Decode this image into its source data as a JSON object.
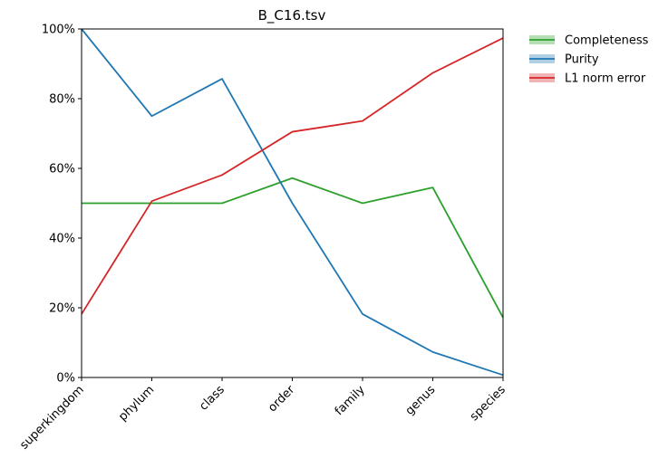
{
  "chart_data": {
    "type": "line",
    "title": "B_C16.tsv",
    "xlabel": "",
    "ylabel": "",
    "categories": [
      "superkingdom",
      "phylum",
      "class",
      "order",
      "family",
      "genus",
      "species"
    ],
    "ylim": [
      0,
      100
    ],
    "yticks": [
      "0%",
      "20%",
      "40%",
      "60%",
      "80%",
      "100%"
    ],
    "grid": false,
    "legend_position": "outside-top-right",
    "series": [
      {
        "name": "Completeness",
        "color": "#2ca02c",
        "values": [
          50,
          50,
          50,
          57.2,
          50,
          54.5,
          17.2
        ]
      },
      {
        "name": "Purity",
        "color": "#1f77b4",
        "values": [
          100,
          75,
          85.7,
          50,
          18.2,
          7.3,
          0.7
        ]
      },
      {
        "name": "L1 norm error",
        "color": "#d62728",
        "values": [
          18.2,
          50.6,
          58.1,
          70.5,
          73.6,
          87.4,
          97.4
        ]
      }
    ]
  }
}
